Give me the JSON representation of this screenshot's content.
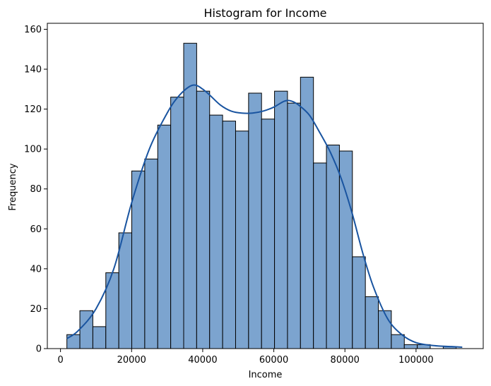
{
  "chart_data": {
    "type": "bar",
    "title": "Histogram for Income",
    "xlabel": "Income",
    "ylabel": "Frequency",
    "xlim": [
      -3700,
      118900
    ],
    "ylim": [
      0,
      163
    ],
    "xticks": [
      0,
      20000,
      40000,
      60000,
      80000,
      100000
    ],
    "xtick_labels": [
      "0",
      "20000",
      "40000",
      "60000",
      "80000",
      "100000"
    ],
    "yticks": [
      0,
      20,
      40,
      60,
      80,
      100,
      120,
      140,
      160
    ],
    "ytick_labels": [
      "0",
      "20",
      "40",
      "60",
      "80",
      "100",
      "120",
      "140",
      "160"
    ],
    "grid": false,
    "bins": {
      "start": 1800,
      "width": 3650,
      "counts": [
        7,
        19,
        11,
        38,
        58,
        89,
        95,
        112,
        126,
        153,
        129,
        117,
        114,
        109,
        128,
        115,
        129,
        123,
        136,
        93,
        102,
        99,
        46,
        26,
        19,
        7,
        2,
        2,
        0,
        1
      ]
    },
    "kde": {
      "x": [
        1800,
        5000,
        10000,
        15000,
        20000,
        25000,
        30000,
        33000,
        36000,
        38000,
        40000,
        42000,
        45000,
        48000,
        51000,
        54000,
        57000,
        60000,
        63000,
        65000,
        67000,
        70000,
        73000,
        76000,
        79000,
        82000,
        85000,
        88000,
        92000,
        96000,
        100000,
        105000,
        110000,
        113000
      ],
      "y": [
        5,
        9,
        20,
        40,
        73,
        100,
        118,
        126,
        131,
        132,
        130,
        127,
        122,
        119,
        118,
        118,
        119,
        121,
        124,
        124,
        122,
        117,
        108,
        98,
        85,
        68,
        48,
        31,
        15,
        7,
        3,
        1.5,
        1,
        0.7
      ]
    },
    "colors": {
      "bar_fill": "#7ca4cf",
      "bar_edge": "#000000",
      "kde_line": "#1954a0"
    }
  }
}
